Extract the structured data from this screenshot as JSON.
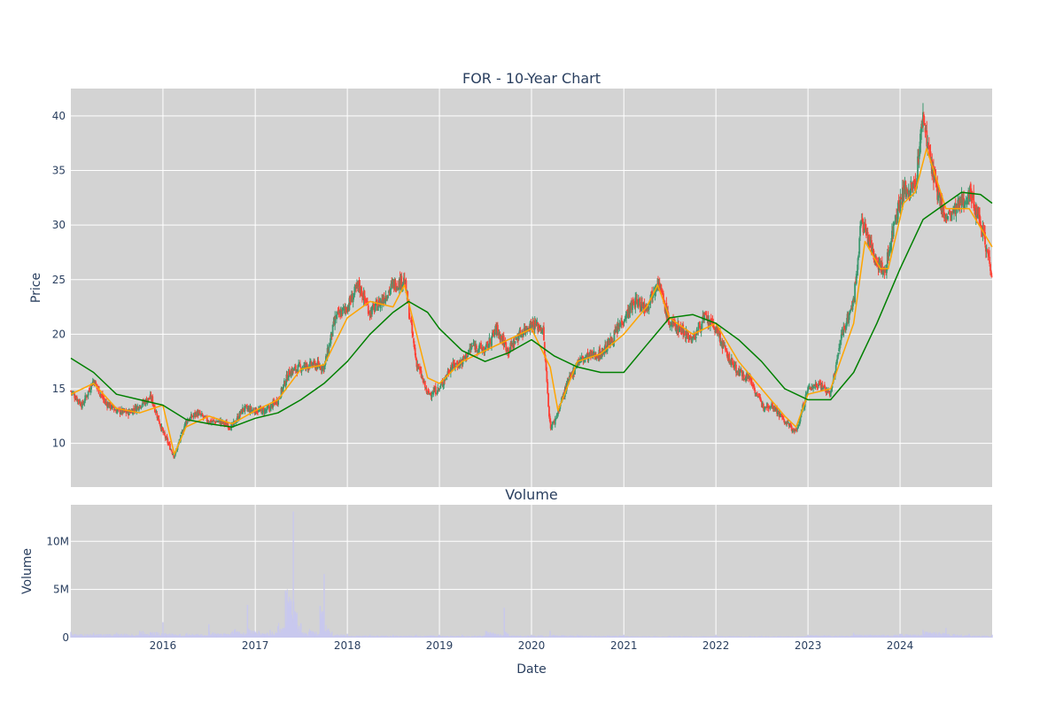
{
  "chart_data": [
    {
      "type": "candlestick",
      "title": "FOR - 10-Year Chart",
      "xlabel": "",
      "ylabel": "Price",
      "xlim": [
        "2015-01-01",
        "2024-12-31"
      ],
      "ylim": [
        6,
        42.5
      ],
      "x_ticks": [
        "2016",
        "2017",
        "2018",
        "2019",
        "2020",
        "2021",
        "2022",
        "2023",
        "2024"
      ],
      "y_ticks": [
        10,
        15,
        20,
        25,
        30,
        35,
        40
      ],
      "grid": true,
      "legend": "none",
      "colors": {
        "background": "#d3d3d3",
        "increasing": "#3d9970",
        "decreasing": "#ff4136",
        "ma_short": "#ffa500",
        "ma_long": "#008000",
        "grid": "#ffffff"
      },
      "series": [
        {
          "kind": "close_path",
          "x": [
            "2015-01-01",
            "2015-02-15",
            "2015-04-01",
            "2015-05-15",
            "2015-07-01",
            "2015-08-15",
            "2015-10-01",
            "2015-11-15",
            "2016-01-01",
            "2016-02-15",
            "2016-04-01",
            "2016-05-15",
            "2016-07-01",
            "2016-08-15",
            "2016-10-01",
            "2016-11-15",
            "2017-01-01",
            "2017-02-15",
            "2017-04-01",
            "2017-05-15",
            "2017-07-01",
            "2017-08-15",
            "2017-10-01",
            "2017-11-15",
            "2018-01-01",
            "2018-02-15",
            "2018-04-01",
            "2018-05-15",
            "2018-07-01",
            "2018-08-15",
            "2018-10-01",
            "2018-11-15",
            "2019-01-01",
            "2019-02-15",
            "2019-04-01",
            "2019-05-15",
            "2019-07-01",
            "2019-08-15",
            "2019-10-01",
            "2019-11-15",
            "2020-01-01",
            "2020-02-15",
            "2020-03-15",
            "2020-04-01",
            "2020-05-15",
            "2020-07-01",
            "2020-08-15",
            "2020-10-01",
            "2020-11-15",
            "2021-01-01",
            "2021-02-15",
            "2021-04-01",
            "2021-05-15",
            "2021-07-01",
            "2021-08-15",
            "2021-10-01",
            "2021-11-15",
            "2022-01-01",
            "2022-02-15",
            "2022-04-01",
            "2022-05-15",
            "2022-07-01",
            "2022-08-15",
            "2022-10-01",
            "2022-11-15",
            "2023-01-01",
            "2023-02-15",
            "2023-04-01",
            "2023-05-15",
            "2023-07-01",
            "2023-08-01",
            "2023-09-15",
            "2023-11-01",
            "2023-12-15",
            "2024-01-15",
            "2024-03-01",
            "2024-04-01",
            "2024-05-15",
            "2024-07-01",
            "2024-08-15",
            "2024-10-01",
            "2024-11-15",
            "2024-12-31"
          ],
          "y": [
            14.8,
            13.5,
            15.8,
            13.8,
            13.0,
            12.8,
            13.5,
            14.2,
            11.0,
            8.8,
            12.0,
            12.8,
            12.0,
            12.0,
            11.5,
            13.2,
            13.0,
            13.0,
            14.0,
            16.5,
            17.0,
            17.2,
            17.0,
            21.5,
            22.5,
            24.5,
            22.0,
            23.0,
            24.5,
            25.0,
            17.5,
            14.5,
            15.0,
            17.0,
            17.5,
            19.0,
            18.5,
            20.5,
            18.5,
            20.0,
            21.0,
            20.5,
            11.5,
            12.0,
            15.0,
            17.5,
            18.0,
            18.2,
            19.5,
            21.5,
            23.0,
            22.5,
            25.0,
            21.0,
            20.5,
            19.5,
            21.5,
            20.5,
            18.0,
            16.5,
            16.0,
            13.5,
            13.5,
            12.0,
            11.0,
            15.0,
            15.5,
            14.5,
            20.0,
            23.0,
            30.5,
            27.5,
            25.5,
            31.0,
            33.0,
            33.5,
            40.0,
            34.0,
            30.5,
            31.5,
            33.0,
            30.5,
            25.5
          ]
        },
        {
          "name": "",
          "kind": "ma_short",
          "x": [
            "2015-01-01",
            "2015-04-01",
            "2015-07-01",
            "2015-10-01",
            "2016-01-01",
            "2016-02-15",
            "2016-04-01",
            "2016-07-01",
            "2016-10-01",
            "2017-01-01",
            "2017-04-01",
            "2017-07-01",
            "2017-10-01",
            "2018-01-01",
            "2018-04-01",
            "2018-07-01",
            "2018-08-15",
            "2018-11-15",
            "2019-01-01",
            "2019-04-01",
            "2019-07-01",
            "2019-10-01",
            "2020-01-01",
            "2020-03-15",
            "2020-04-15",
            "2020-07-01",
            "2020-10-01",
            "2021-01-01",
            "2021-04-01",
            "2021-05-15",
            "2021-07-01",
            "2021-10-01",
            "2022-01-01",
            "2022-04-01",
            "2022-07-01",
            "2022-10-01",
            "2022-11-15",
            "2023-01-01",
            "2023-04-01",
            "2023-07-01",
            "2023-08-15",
            "2023-10-15",
            "2023-11-15",
            "2024-01-15",
            "2024-03-01",
            "2024-04-15",
            "2024-07-01",
            "2024-10-01",
            "2024-12-31"
          ],
          "y": [
            14.5,
            15.5,
            13.2,
            12.8,
            13.5,
            9.0,
            11.5,
            12.5,
            11.8,
            13.0,
            14.0,
            16.8,
            17.2,
            21.5,
            23.0,
            22.5,
            24.5,
            16.0,
            15.5,
            17.5,
            18.5,
            19.5,
            20.5,
            17.0,
            13.0,
            17.5,
            18.2,
            20.0,
            22.5,
            24.5,
            21.5,
            20.0,
            21.0,
            17.5,
            15.0,
            12.5,
            11.5,
            14.5,
            15.0,
            21.0,
            28.5,
            26.0,
            26.0,
            32.0,
            33.0,
            37.0,
            31.5,
            31.5,
            28.0
          ]
        },
        {
          "name": "",
          "kind": "ma_long",
          "x": [
            "2015-01-01",
            "2015-04-01",
            "2015-07-01",
            "2015-10-01",
            "2016-01-01",
            "2016-04-01",
            "2016-07-01",
            "2016-10-01",
            "2017-01-01",
            "2017-04-01",
            "2017-07-01",
            "2017-10-01",
            "2018-01-01",
            "2018-04-01",
            "2018-07-01",
            "2018-09-01",
            "2018-11-15",
            "2019-01-01",
            "2019-04-01",
            "2019-07-01",
            "2019-10-01",
            "2020-01-01",
            "2020-04-01",
            "2020-07-01",
            "2020-10-01",
            "2021-01-01",
            "2021-04-01",
            "2021-07-01",
            "2021-10-01",
            "2022-01-01",
            "2022-04-01",
            "2022-07-01",
            "2022-10-01",
            "2023-01-01",
            "2023-04-01",
            "2023-07-01",
            "2023-10-01",
            "2024-01-01",
            "2024-04-01",
            "2024-07-01",
            "2024-09-01",
            "2024-11-15",
            "2024-12-31"
          ],
          "y": [
            17.8,
            16.5,
            14.5,
            14.0,
            13.5,
            12.2,
            11.8,
            11.5,
            12.3,
            12.8,
            14.0,
            15.5,
            17.5,
            20.0,
            22.0,
            23.0,
            22.0,
            20.5,
            18.5,
            17.5,
            18.3,
            19.5,
            18.0,
            17.0,
            16.5,
            16.5,
            19.0,
            21.5,
            21.8,
            21.0,
            19.5,
            17.5,
            15.0,
            14.0,
            14.0,
            16.5,
            21.0,
            26.0,
            30.5,
            32.0,
            33.0,
            32.8,
            32.0
          ]
        }
      ]
    },
    {
      "type": "bar",
      "title": "Volume",
      "xlabel": "Date",
      "ylabel": "Volume",
      "xlim": [
        "2015-01-01",
        "2024-12-31"
      ],
      "ylim": [
        0,
        13800000
      ],
      "x_ticks": [
        "2016",
        "2017",
        "2018",
        "2019",
        "2020",
        "2021",
        "2022",
        "2023",
        "2024"
      ],
      "y_ticks": [
        "0",
        "5M",
        "10M"
      ],
      "y_tick_values": [
        0,
        5000000,
        10000000
      ],
      "colors": {
        "bars": "#c8c8ee"
      },
      "x": [
        "2015-01-01",
        "2015-04-01",
        "2015-07-01",
        "2015-10-01",
        "2016-01-01",
        "2016-04-01",
        "2016-07-01",
        "2016-10-01",
        "2016-12-01",
        "2017-01-15",
        "2017-03-01",
        "2017-04-01",
        "2017-05-01",
        "2017-06-01",
        "2017-06-15",
        "2017-07-01",
        "2017-08-01",
        "2017-09-15",
        "2017-10-01",
        "2017-11-01",
        "2018-01-01",
        "2018-04-01",
        "2018-07-01",
        "2018-10-01",
        "2019-01-01",
        "2019-04-01",
        "2019-07-01",
        "2019-09-15",
        "2019-10-01",
        "2020-01-01",
        "2020-03-15",
        "2020-07-01",
        "2021-01-01",
        "2021-07-01",
        "2022-01-01",
        "2022-07-01",
        "2023-01-01",
        "2023-07-01",
        "2024-01-01",
        "2024-04-01",
        "2024-07-01",
        "2024-10-01",
        "2024-12-31"
      ],
      "values": [
        600000,
        500000,
        500000,
        700000,
        1600000,
        400000,
        1400000,
        600000,
        3400000,
        700000,
        800000,
        1200000,
        4900000,
        13100000,
        2600000,
        1500000,
        600000,
        3300000,
        6600000,
        600000,
        400000,
        300000,
        300000,
        300000,
        300000,
        300000,
        300000,
        3100000,
        400000,
        300000,
        700000,
        300000,
        300000,
        200000,
        300000,
        200000,
        300000,
        500000,
        400000,
        800000,
        1000000,
        400000,
        300000
      ]
    }
  ]
}
